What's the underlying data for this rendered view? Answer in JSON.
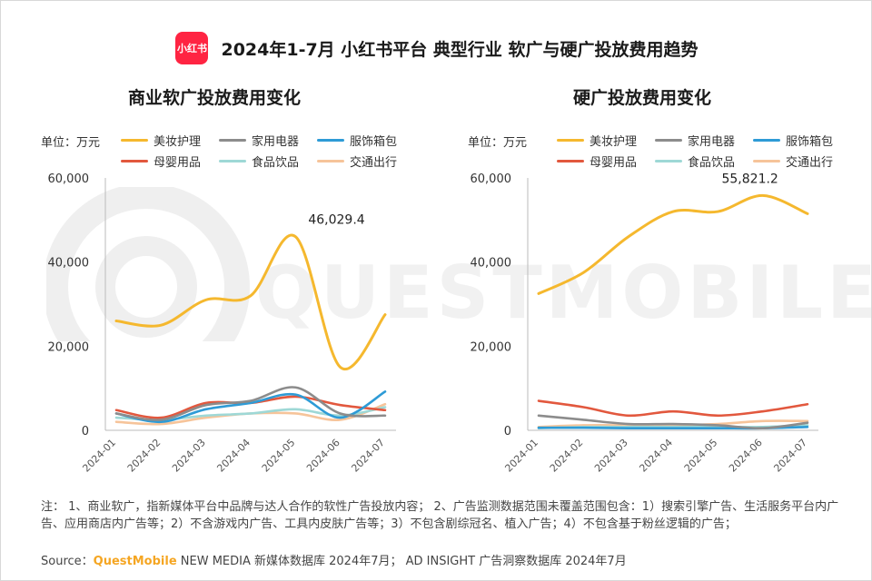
{
  "header": {
    "logo_text": "小红书",
    "title": "2024年1-7月 小红书平台 典型行业 软广与硬广投放费用趋势"
  },
  "watermark": "QUESTMOBILE",
  "legend_unit": "单位：万元",
  "series_meta": [
    {
      "name": "美妆护理",
      "color": "#f5b82e"
    },
    {
      "name": "家用电器",
      "color": "#8c8c8c"
    },
    {
      "name": "服饰箱包",
      "color": "#2e9bd6"
    },
    {
      "name": "母婴用品",
      "color": "#e2583e"
    },
    {
      "name": "食品饮品",
      "color": "#9ed8d6"
    },
    {
      "name": "交通出行",
      "color": "#f6c49a"
    }
  ],
  "chart_data": [
    {
      "type": "line",
      "title": "商业软广投放费用变化",
      "unit": "单位：万元",
      "x": [
        "2024-01",
        "2024-02",
        "2024-03",
        "2024-04",
        "2024-05",
        "2024-06",
        "2024-07"
      ],
      "ylim": [
        0,
        60000
      ],
      "yticks": [
        "0",
        "20,000",
        "40,000",
        "60,000"
      ],
      "series": [
        {
          "name": "美妆护理",
          "values": [
            26000,
            25000,
            31000,
            32000,
            46029.4,
            15000,
            27500
          ]
        },
        {
          "name": "家用电器",
          "values": [
            4000,
            2500,
            6000,
            7000,
            10200,
            4000,
            3500
          ]
        },
        {
          "name": "服饰箱包",
          "values": [
            4000,
            2000,
            5000,
            6500,
            8500,
            3000,
            9200
          ]
        },
        {
          "name": "母婴用品",
          "values": [
            4800,
            3000,
            6500,
            6500,
            8000,
            6000,
            4800
          ]
        },
        {
          "name": "食品饮品",
          "values": [
            3000,
            2500,
            3500,
            4000,
            5000,
            3500,
            5500
          ]
        },
        {
          "name": "交通出行",
          "values": [
            2000,
            1500,
            3000,
            4000,
            4000,
            2500,
            6200
          ]
        }
      ],
      "annotation": {
        "series": "美妆护理",
        "index": 4,
        "text": "46,029.4"
      }
    },
    {
      "type": "line",
      "title": "硬广投放费用变化",
      "unit": "单位：万元",
      "x": [
        "2024-01",
        "2024-02",
        "2024-03",
        "2024-04",
        "2024-05",
        "2024-06",
        "2024-07"
      ],
      "ylim": [
        0,
        60000
      ],
      "yticks": [
        "0",
        "20,000",
        "40,000",
        "60,000"
      ],
      "series": [
        {
          "name": "美妆护理",
          "values": [
            32500,
            37500,
            46000,
            52000,
            52000,
            55821.2,
            51500
          ]
        },
        {
          "name": "家用电器",
          "values": [
            3500,
            2500,
            1500,
            1500,
            1200,
            500,
            1800
          ]
        },
        {
          "name": "服饰箱包",
          "values": [
            600,
            600,
            500,
            500,
            500,
            500,
            800
          ]
        },
        {
          "name": "母婴用品",
          "values": [
            7000,
            5500,
            3500,
            4500,
            3500,
            4500,
            6200
          ]
        },
        {
          "name": "食品饮品",
          "values": [
            500,
            800,
            800,
            800,
            800,
            800,
            1200
          ]
        },
        {
          "name": "交通出行",
          "values": [
            800,
            1200,
            1200,
            1200,
            1500,
            2200,
            2200
          ]
        }
      ],
      "annotation": {
        "series": "美妆护理",
        "index": 5,
        "text": "55,821.2"
      }
    }
  ],
  "notes": "注： 1、商业软广，指新媒体平台中品牌与达人合作的软性广告投放内容； 2、广告监测数据范围未覆盖范围包含：1）搜索引擎广告、生活服务平台内广告、应用商店内广告等；2）不含游戏内广告、工具内皮肤广告等；3）不包含剧综冠名、植入广告；4）不包含基于粉丝逻辑的广告；",
  "source": {
    "prefix": "Source：",
    "brand": "QuestMobile",
    "text": " NEW MEDIA 新媒体数据库 2024年7月； AD INSIGHT 广告洞察数据库 2024年7月"
  }
}
